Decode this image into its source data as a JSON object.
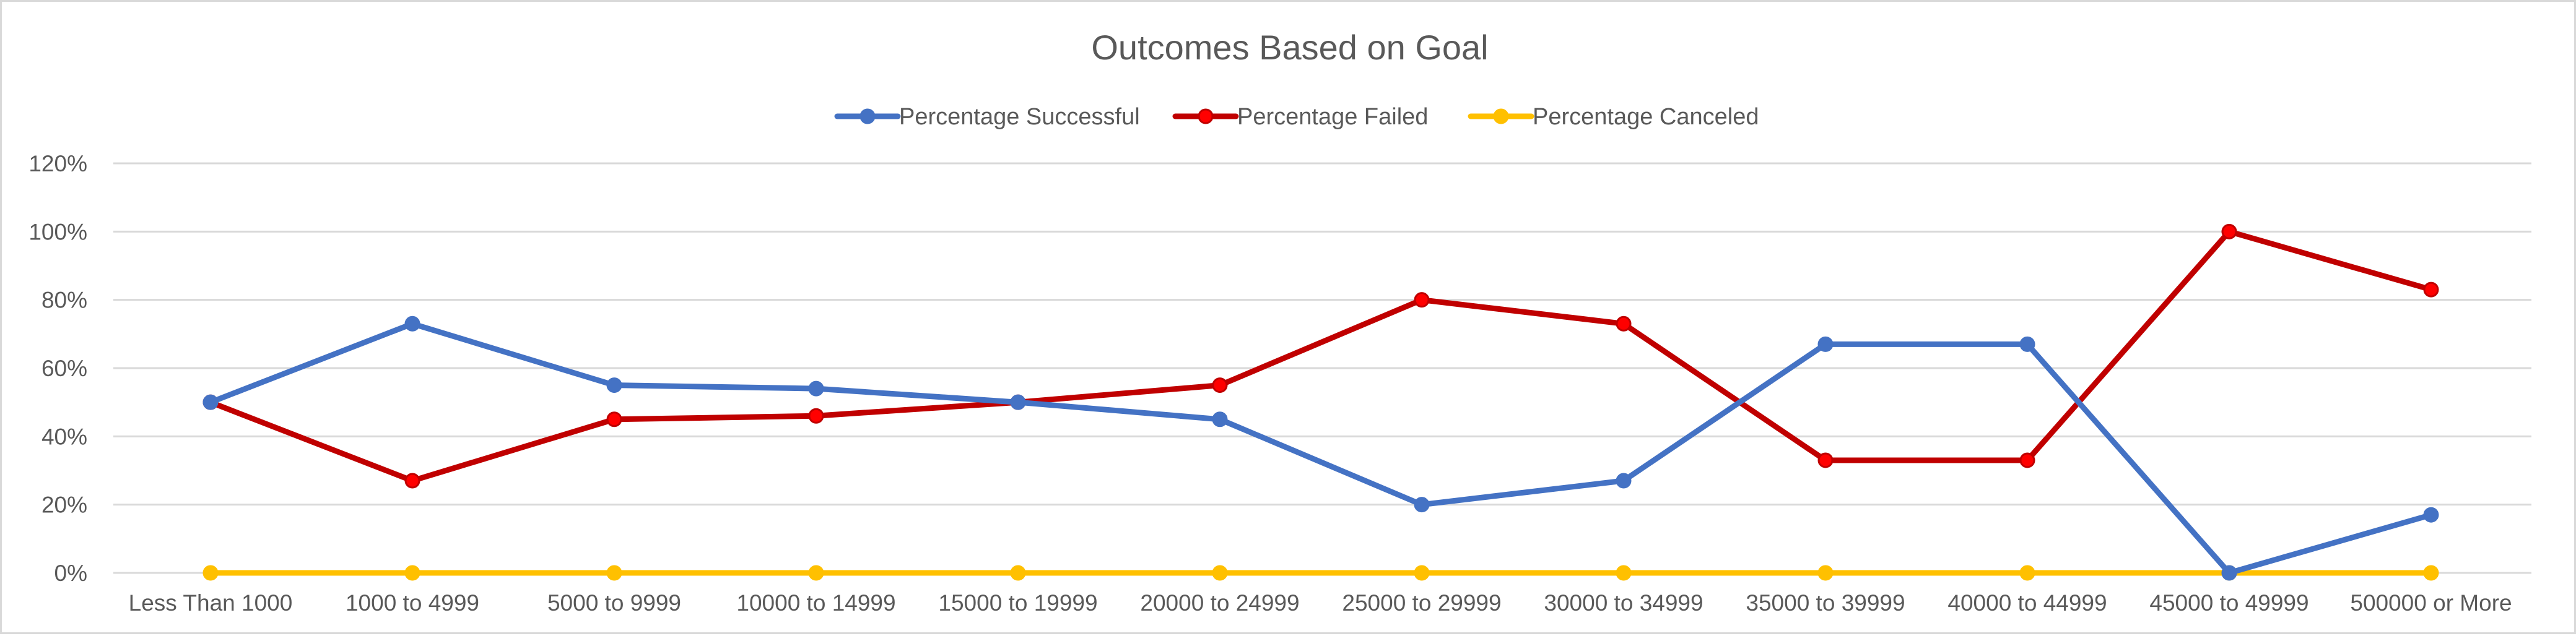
{
  "chart_data": {
    "type": "line",
    "title": "Outcomes Based on Goal",
    "xlabel": "",
    "ylabel": "",
    "categories": [
      "Less Than 1000",
      "1000 to 4999",
      "5000 to 9999",
      "10000 to 14999",
      "15000 to 19999",
      "20000 to 24999",
      "25000 to 29999",
      "30000 to 34999",
      "35000 to 39999",
      "40000 to 44999",
      "45000 to 49999",
      "500000 or More"
    ],
    "ylim": [
      0,
      1.2
    ],
    "y_ticks": [
      0,
      0.2,
      0.4,
      0.6,
      0.8,
      1.0,
      1.2
    ],
    "y_tick_labels": [
      "0%",
      "20%",
      "40%",
      "60%",
      "80%",
      "100%",
      "120%"
    ],
    "grid": true,
    "legend_position": "top",
    "series": [
      {
        "name": "Percentage Successful",
        "color": "#4472c4",
        "marker_fill": "#4472c4",
        "values": [
          0.5,
          0.73,
          0.55,
          0.54,
          0.5,
          0.45,
          0.2,
          0.27,
          0.67,
          0.67,
          0.0,
          0.17
        ]
      },
      {
        "name": "Percentage Failed",
        "color": "#c00000",
        "marker_fill": "#ff0000",
        "values": [
          0.5,
          0.27,
          0.45,
          0.46,
          0.5,
          0.55,
          0.8,
          0.73,
          0.33,
          0.33,
          1.0,
          0.83
        ]
      },
      {
        "name": "Percentage Canceled",
        "color": "#ffc000",
        "marker_fill": "#ffc000",
        "values": [
          0,
          0,
          0,
          0,
          0,
          0,
          0,
          0,
          0,
          0,
          0,
          0
        ]
      }
    ]
  }
}
